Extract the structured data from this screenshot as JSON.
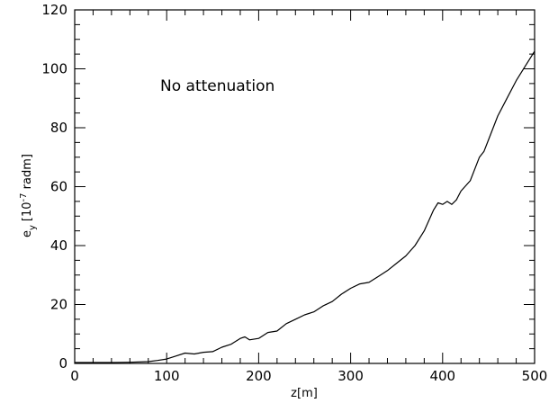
{
  "chart_data": {
    "type": "line",
    "title": "",
    "annotation": "No attenuation",
    "xlabel": "z[m]",
    "ylabel_main": "e",
    "ylabel_sub": "y",
    "ylabel_bracket_open": "[10",
    "ylabel_exp": "-7",
    "ylabel_units": " radm]",
    "xlim": [
      0,
      500
    ],
    "ylim": [
      0,
      120
    ],
    "xticks": [
      0,
      100,
      200,
      300,
      400,
      500
    ],
    "yticks": [
      0,
      20,
      40,
      60,
      80,
      100,
      120
    ],
    "xtick_labels": [
      "0",
      "100",
      "200",
      "300",
      "400",
      "500"
    ],
    "ytick_labels": [
      "0",
      "20",
      "40",
      "60",
      "80",
      "100",
      "120"
    ],
    "grid": false,
    "series": [
      {
        "x": [
          0,
          20,
          40,
          60,
          80,
          90,
          100,
          110,
          120,
          130,
          140,
          150,
          160,
          170,
          180,
          185,
          190,
          200,
          210,
          220,
          230,
          240,
          250,
          260,
          270,
          280,
          290,
          300,
          310,
          320,
          330,
          340,
          350,
          360,
          370,
          380,
          390,
          395,
          400,
          405,
          410,
          415,
          420,
          430,
          440,
          445,
          450,
          460,
          470,
          480,
          490,
          500
        ],
        "y": [
          0.3,
          0.3,
          0.3,
          0.4,
          0.6,
          1.0,
          1.5,
          2.5,
          3.5,
          3.2,
          3.8,
          4.0,
          5.5,
          6.5,
          8.5,
          9.0,
          8.0,
          8.5,
          10.5,
          11.0,
          13.5,
          15.0,
          16.5,
          17.5,
          19.5,
          21.0,
          23.5,
          25.5,
          27.0,
          27.5,
          29.5,
          31.5,
          34.0,
          36.5,
          40.0,
          45.0,
          52.0,
          54.5,
          54.0,
          55.0,
          54.0,
          55.5,
          58.5,
          62.0,
          70.0,
          72.0,
          76.0,
          84.0,
          90.0,
          96.0,
          101.0,
          106.0
        ]
      }
    ]
  }
}
